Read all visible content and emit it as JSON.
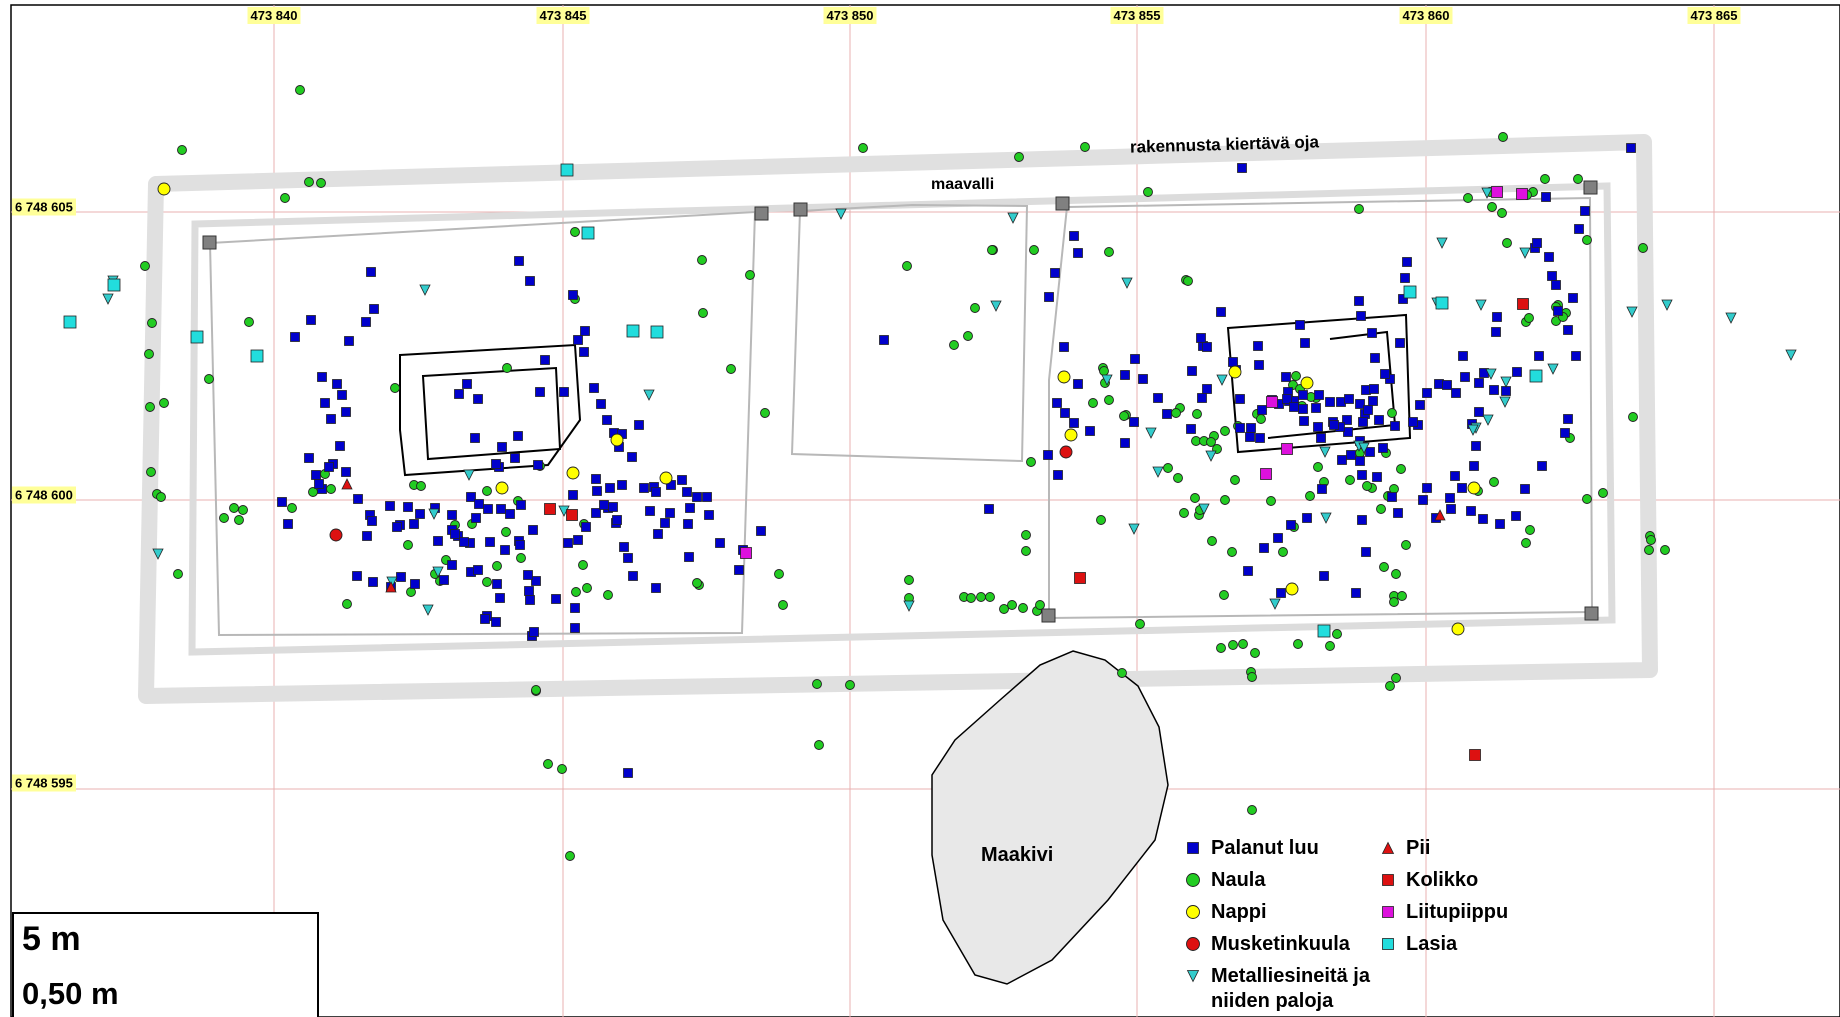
{
  "map": {
    "x_ticks": [
      "473 840",
      "473 845",
      "473 850",
      "473 855",
      "473 860",
      "473 865"
    ],
    "y_ticks": [
      "6 748 605",
      "6 748 600",
      "6 748 595"
    ],
    "labels": {
      "ditch": "rakennusta kiertävä oja",
      "bank": "maavalli",
      "stone": "Maakivi"
    },
    "scale": {
      "top": "5 m",
      "bottom": "0,50 m"
    }
  },
  "legend": [
    {
      "key": "bone",
      "label": "Palanut luu",
      "symbol": "square",
      "color": "#0000cc"
    },
    {
      "key": "nail",
      "label": "Naula",
      "symbol": "circle",
      "color": "#22cc22"
    },
    {
      "key": "button",
      "label": "Nappi",
      "symbol": "circle",
      "color": "#ffff00"
    },
    {
      "key": "musket",
      "label": "Musketinkuula",
      "symbol": "circle",
      "color": "#dd1111"
    },
    {
      "key": "metal",
      "label": "Metalliesineitä ja\nniiden paloja",
      "symbol": "triangle-down",
      "color": "#33cccc"
    },
    {
      "key": "flint",
      "label": "Pii",
      "symbol": "triangle-up",
      "color": "#dd1111"
    },
    {
      "key": "coin",
      "label": "Kolikko",
      "symbol": "square",
      "color": "#dd1111"
    },
    {
      "key": "pipe",
      "label": "Liitupiippu",
      "symbol": "square",
      "color": "#dd11dd"
    },
    {
      "key": "glass",
      "label": "Lasia",
      "symbol": "square",
      "color": "#22dddd"
    }
  ]
}
